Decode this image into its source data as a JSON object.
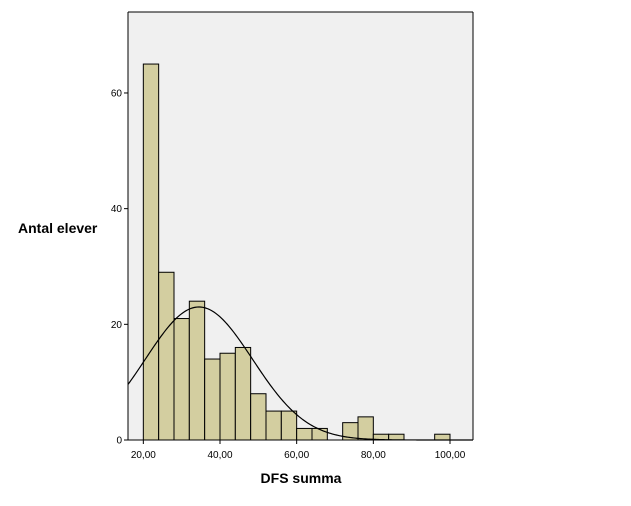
{
  "chart_data": {
    "type": "bar",
    "subtype": "histogram",
    "xlabel": "DFS summa",
    "ylabel": "Antal elever",
    "xlim": [
      16.0,
      106.0
    ],
    "ylim": [
      0,
      74
    ],
    "x_ticks": [
      20,
      40,
      60,
      80,
      100
    ],
    "x_tick_labels": [
      "20,00",
      "40,00",
      "60,00",
      "80,00",
      "100,00"
    ],
    "y_ticks": [
      0,
      20,
      40,
      60
    ],
    "y_tick_labels": [
      "0",
      "20",
      "40",
      "60"
    ],
    "bin_width": 4,
    "bins": [
      {
        "x0": 20,
        "x1": 24,
        "count": 65
      },
      {
        "x0": 24,
        "x1": 28,
        "count": 29
      },
      {
        "x0": 28,
        "x1": 32,
        "count": 21
      },
      {
        "x0": 32,
        "x1": 36,
        "count": 24
      },
      {
        "x0": 36,
        "x1": 40,
        "count": 14
      },
      {
        "x0": 40,
        "x1": 44,
        "count": 15
      },
      {
        "x0": 44,
        "x1": 48,
        "count": 16
      },
      {
        "x0": 48,
        "x1": 52,
        "count": 8
      },
      {
        "x0": 52,
        "x1": 56,
        "count": 5
      },
      {
        "x0": 56,
        "x1": 60,
        "count": 5
      },
      {
        "x0": 60,
        "x1": 64,
        "count": 2
      },
      {
        "x0": 64,
        "x1": 68,
        "count": 2
      },
      {
        "x0": 72,
        "x1": 76,
        "count": 3
      },
      {
        "x0": 76,
        "x1": 80,
        "count": 4
      },
      {
        "x0": 80,
        "x1": 84,
        "count": 1
      },
      {
        "x0": 84,
        "x1": 88,
        "count": 1
      },
      {
        "x0": 96,
        "x1": 100,
        "count": 1
      }
    ],
    "normal_curve": {
      "mean": 34.5,
      "sd": 14.0,
      "peak": 23
    },
    "colors": {
      "bar_fill": "#d3cea0",
      "bar_stroke": "#000000",
      "plot_background": "#f0f0f0",
      "curve": "#000000"
    },
    "grid": false,
    "legend": "none"
  }
}
